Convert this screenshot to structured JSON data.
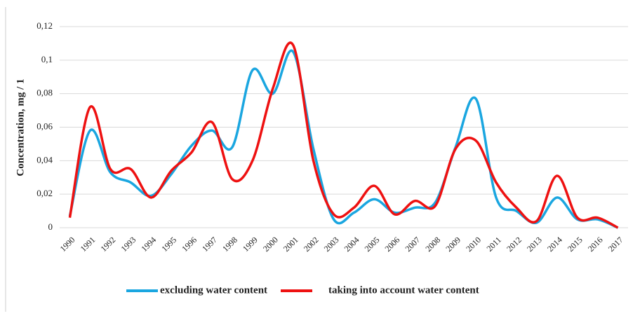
{
  "chart_data": {
    "type": "line",
    "smooth": true,
    "y_label": "Concentration,  mg / 1",
    "categories": [
      "1990",
      "1991",
      "1992",
      "1993",
      "1994",
      "1995",
      "1996",
      "1997",
      "1998",
      "1999",
      "2000",
      "2001",
      "2002",
      "2003",
      "2004",
      "2005",
      "2006",
      "2007",
      "2008",
      "2009",
      "2010",
      "2011",
      "2012",
      "2013",
      "2014",
      "2015",
      "2016",
      "2017"
    ],
    "series": [
      {
        "name": "excluding water content",
        "color": "#1aa6e0",
        "values": [
          0.007,
          0.058,
          0.033,
          0.027,
          0.019,
          0.032,
          0.049,
          0.058,
          0.048,
          0.094,
          0.08,
          0.105,
          0.047,
          0.005,
          0.009,
          0.017,
          0.009,
          0.012,
          0.015,
          0.048,
          0.077,
          0.018,
          0.01,
          0.003,
          0.018,
          0.005,
          0.005,
          0.0
        ]
      },
      {
        "name": "taking into account water content",
        "color": "#ee1111",
        "values": [
          0.006,
          0.072,
          0.035,
          0.035,
          0.018,
          0.034,
          0.045,
          0.063,
          0.029,
          0.04,
          0.083,
          0.109,
          0.04,
          0.008,
          0.012,
          0.025,
          0.008,
          0.016,
          0.013,
          0.047,
          0.052,
          0.027,
          0.012,
          0.004,
          0.031,
          0.006,
          0.006,
          0.0
        ]
      }
    ],
    "ylim": [
      0,
      0.12
    ],
    "yticks": [
      0,
      {
        "value": 0.02,
        "label": "0,02"
      },
      {
        "value": 0.04,
        "label": "0,04"
      },
      {
        "value": 0.06,
        "label": "0,06"
      },
      {
        "value": 0.08,
        "label": "0,08"
      },
      {
        "value": 0.1,
        "label": "0,1"
      },
      {
        "value": 0.12,
        "label": "0,12"
      }
    ],
    "grid": true,
    "legend": "bottom"
  }
}
